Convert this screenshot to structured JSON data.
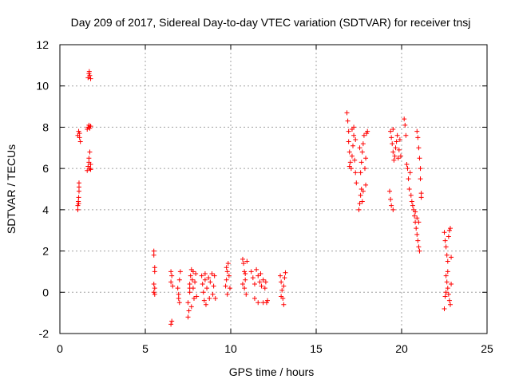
{
  "chart_data": {
    "type": "scatter",
    "title": "Day 209 of 2017, Sidereal Day-to-day VTEC variation (SDTVAR) for receiver tnsj",
    "xlabel": "GPS time / hours",
    "ylabel": "SDTVAR / TECUs",
    "xlim": [
      0,
      25
    ],
    "ylim": [
      -2,
      12
    ],
    "xticks": [
      0,
      5,
      10,
      15,
      20,
      25
    ],
    "yticks": [
      -2,
      0,
      2,
      4,
      6,
      8,
      10,
      12
    ],
    "xtick_labels": [
      "0",
      "5",
      "10",
      "15",
      "20",
      "25"
    ],
    "ytick_labels": [
      "-2",
      "0",
      "2",
      "4",
      "6",
      "8",
      "10",
      "12"
    ],
    "grid": true,
    "marker": "+",
    "color": "#ff0000",
    "series": [
      {
        "name": "SDTVAR",
        "points": [
          [
            1.05,
            4.0
          ],
          [
            1.05,
            4.2
          ],
          [
            1.08,
            4.4
          ],
          [
            1.1,
            4.6
          ],
          [
            1.1,
            4.3
          ],
          [
            1.12,
            4.9
          ],
          [
            1.12,
            5.1
          ],
          [
            1.12,
            5.3
          ],
          [
            1.05,
            7.6
          ],
          [
            1.1,
            7.8
          ],
          [
            1.15,
            7.5
          ],
          [
            1.15,
            7.7
          ],
          [
            1.2,
            7.3
          ],
          [
            1.6,
            5.9
          ],
          [
            1.65,
            6.1
          ],
          [
            1.7,
            6.3
          ],
          [
            1.7,
            6.5
          ],
          [
            1.75,
            6.8
          ],
          [
            1.75,
            6.0
          ],
          [
            1.8,
            6.2
          ],
          [
            1.8,
            5.95
          ],
          [
            1.6,
            7.9
          ],
          [
            1.65,
            8.0
          ],
          [
            1.7,
            8.1
          ],
          [
            1.75,
            7.95
          ],
          [
            1.8,
            8.05
          ],
          [
            1.65,
            10.4
          ],
          [
            1.7,
            10.6
          ],
          [
            1.75,
            10.5
          ],
          [
            1.8,
            10.35
          ],
          [
            1.72,
            10.7
          ],
          [
            5.5,
            2.0
          ],
          [
            5.5,
            1.8
          ],
          [
            5.55,
            1.2
          ],
          [
            5.55,
            1.0
          ],
          [
            5.5,
            0.4
          ],
          [
            5.55,
            0.2
          ],
          [
            5.5,
            0.0
          ],
          [
            5.55,
            -0.1
          ],
          [
            6.5,
            -1.55
          ],
          [
            6.55,
            -1.4
          ],
          [
            6.5,
            0.5
          ],
          [
            6.55,
            0.8
          ],
          [
            6.5,
            1.0
          ],
          [
            6.6,
            0.3
          ],
          [
            6.9,
            0.2
          ],
          [
            6.95,
            -0.3
          ],
          [
            7.0,
            -0.5
          ],
          [
            7.0,
            0.6
          ],
          [
            7.05,
            1.0
          ],
          [
            6.95,
            -0.1
          ],
          [
            7.5,
            -1.2
          ],
          [
            7.55,
            -0.9
          ],
          [
            7.5,
            -0.5
          ],
          [
            7.6,
            0.0
          ],
          [
            7.6,
            0.4
          ],
          [
            7.65,
            0.8
          ],
          [
            7.7,
            1.1
          ],
          [
            7.75,
            0.6
          ],
          [
            7.8,
            0.2
          ],
          [
            7.85,
            -0.3
          ],
          [
            7.9,
            0.5
          ],
          [
            7.95,
            0.9
          ],
          [
            8.0,
            -0.2
          ],
          [
            7.7,
            -0.7
          ],
          [
            7.8,
            1.0
          ],
          [
            7.6,
            0.2
          ],
          [
            8.3,
            0.8
          ],
          [
            8.35,
            0.4
          ],
          [
            8.4,
            0.0
          ],
          [
            8.45,
            -0.4
          ],
          [
            8.5,
            0.6
          ],
          [
            8.55,
            -0.6
          ],
          [
            8.6,
            0.2
          ],
          [
            8.7,
            0.7
          ],
          [
            8.75,
            -0.3
          ],
          [
            8.8,
            0.5
          ],
          [
            8.9,
            0.9
          ],
          [
            8.95,
            -0.1
          ],
          [
            9.0,
            0.3
          ],
          [
            9.05,
            0.8
          ],
          [
            9.1,
            -0.3
          ],
          [
            8.5,
            0.9
          ],
          [
            9.7,
            0.3
          ],
          [
            9.75,
            0.6
          ],
          [
            9.8,
            1.0
          ],
          [
            9.85,
            1.4
          ],
          [
            9.9,
            0.8
          ],
          [
            9.95,
            0.2
          ],
          [
            9.8,
            -0.1
          ],
          [
            9.75,
            1.2
          ],
          [
            10.7,
            1.6
          ],
          [
            10.75,
            1.4
          ],
          [
            10.8,
            1.0
          ],
          [
            10.85,
            0.6
          ],
          [
            10.8,
            0.2
          ],
          [
            10.9,
            -0.1
          ],
          [
            10.85,
            0.9
          ],
          [
            10.95,
            1.5
          ],
          [
            10.7,
            0.4
          ],
          [
            11.2,
            1.0
          ],
          [
            11.3,
            0.7
          ],
          [
            11.4,
            0.4
          ],
          [
            11.5,
            1.1
          ],
          [
            11.6,
            0.8
          ],
          [
            11.7,
            0.5
          ],
          [
            11.75,
            0.9
          ],
          [
            11.8,
            0.3
          ],
          [
            11.9,
            0.6
          ],
          [
            12.0,
            0.2
          ],
          [
            12.05,
            0.5
          ],
          [
            12.1,
            -0.5
          ],
          [
            12.15,
            -0.4
          ],
          [
            11.4,
            -0.3
          ],
          [
            11.6,
            -0.5
          ],
          [
            11.9,
            -0.5
          ],
          [
            12.9,
            0.8
          ],
          [
            12.95,
            0.5
          ],
          [
            13.0,
            0.1
          ],
          [
            13.05,
            -0.3
          ],
          [
            13.1,
            -0.6
          ],
          [
            13.1,
            0.3
          ],
          [
            13.15,
            0.7
          ],
          [
            13.2,
            0.95
          ],
          [
            12.95,
            -0.2
          ],
          [
            16.8,
            8.7
          ],
          [
            16.85,
            8.3
          ],
          [
            16.9,
            7.8
          ],
          [
            16.9,
            7.3
          ],
          [
            16.95,
            6.8
          ],
          [
            17.0,
            6.3
          ],
          [
            17.05,
            6.0
          ],
          [
            17.1,
            6.6
          ],
          [
            17.15,
            7.1
          ],
          [
            17.2,
            7.6
          ],
          [
            17.25,
            6.4
          ],
          [
            17.3,
            5.8
          ],
          [
            17.35,
            5.3
          ],
          [
            17.2,
            8.0
          ],
          [
            17.3,
            7.4
          ],
          [
            17.1,
            7.9
          ],
          [
            16.95,
            6.1
          ],
          [
            17.5,
            4.0
          ],
          [
            17.55,
            4.3
          ],
          [
            17.6,
            4.7
          ],
          [
            17.65,
            5.0
          ],
          [
            17.7,
            4.4
          ],
          [
            17.75,
            4.9
          ],
          [
            17.6,
            5.8
          ],
          [
            17.65,
            6.3
          ],
          [
            17.7,
            6.8
          ],
          [
            17.75,
            7.2
          ],
          [
            17.8,
            7.6
          ],
          [
            17.85,
            6.0
          ],
          [
            17.9,
            6.5
          ],
          [
            17.95,
            7.7
          ],
          [
            18.0,
            7.8
          ],
          [
            17.55,
            7.0
          ],
          [
            17.9,
            5.2
          ],
          [
            19.3,
            4.9
          ],
          [
            19.35,
            4.5
          ],
          [
            19.4,
            4.2
          ],
          [
            19.5,
            4.0
          ],
          [
            19.35,
            7.8
          ],
          [
            19.4,
            7.5
          ],
          [
            19.45,
            7.2
          ],
          [
            19.5,
            6.8
          ],
          [
            19.55,
            6.4
          ],
          [
            19.6,
            6.6
          ],
          [
            19.65,
            7.0
          ],
          [
            19.7,
            7.3
          ],
          [
            19.75,
            7.6
          ],
          [
            19.8,
            6.5
          ],
          [
            19.85,
            6.9
          ],
          [
            19.9,
            7.4
          ],
          [
            19.95,
            6.6
          ],
          [
            19.5,
            7.9
          ],
          [
            20.15,
            8.4
          ],
          [
            20.2,
            8.1
          ],
          [
            20.25,
            7.6
          ],
          [
            20.3,
            6.2
          ],
          [
            20.35,
            6.0
          ],
          [
            20.4,
            5.5
          ],
          [
            20.45,
            5.0
          ],
          [
            20.5,
            5.8
          ],
          [
            20.55,
            4.7
          ],
          [
            20.6,
            4.4
          ],
          [
            20.65,
            4.2
          ],
          [
            20.7,
            4.0
          ],
          [
            20.75,
            3.7
          ],
          [
            20.8,
            3.4
          ],
          [
            20.85,
            3.1
          ],
          [
            20.9,
            2.8
          ],
          [
            20.95,
            2.5
          ],
          [
            21.0,
            2.2
          ],
          [
            21.05,
            2.0
          ],
          [
            20.8,
            3.9
          ],
          [
            20.9,
            3.6
          ],
          [
            21.0,
            3.4
          ],
          [
            20.9,
            7.8
          ],
          [
            20.95,
            7.5
          ],
          [
            21.0,
            7.0
          ],
          [
            21.05,
            6.5
          ],
          [
            21.1,
            6.0
          ],
          [
            21.1,
            5.5
          ],
          [
            21.15,
            4.8
          ],
          [
            21.15,
            4.6
          ],
          [
            22.5,
            2.9
          ],
          [
            22.55,
            2.5
          ],
          [
            22.6,
            2.2
          ],
          [
            22.65,
            1.8
          ],
          [
            22.7,
            1.5
          ],
          [
            22.75,
            2.7
          ],
          [
            22.8,
            3.0
          ],
          [
            22.85,
            3.1
          ],
          [
            22.9,
            1.7
          ],
          [
            22.6,
            0.8
          ],
          [
            22.65,
            0.5
          ],
          [
            22.7,
            0.2
          ],
          [
            22.75,
            -0.1
          ],
          [
            22.8,
            -0.4
          ],
          [
            22.85,
            -0.6
          ],
          [
            22.55,
            -0.2
          ],
          [
            22.5,
            -0.8
          ],
          [
            22.6,
            0.0
          ],
          [
            22.9,
            0.4
          ],
          [
            22.7,
            1.0
          ]
        ]
      }
    ]
  }
}
